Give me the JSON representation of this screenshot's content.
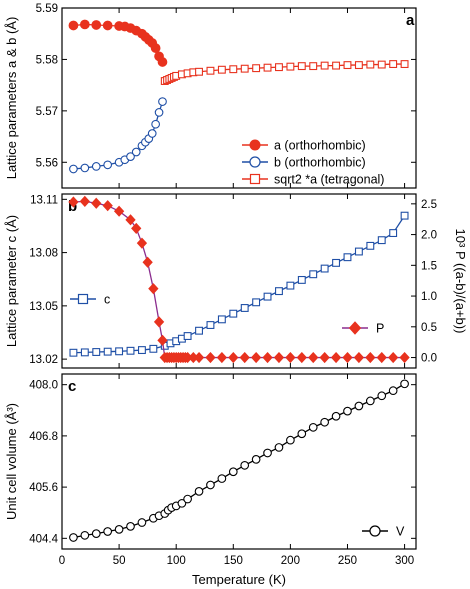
{
  "chart_data": [
    {
      "id": "a",
      "type": "scatter",
      "panel_label": "a",
      "ylabel": "Lattice parameters a & b (Å)",
      "xlim": [
        0,
        310
      ],
      "ylim": [
        5.555,
        5.59
      ],
      "yticks": [
        5.56,
        5.57,
        5.58,
        5.59
      ],
      "yticklabels": [
        "5.56",
        "5.57",
        "5.58",
        "5.59"
      ],
      "legend_position": "bottom-right",
      "series": [
        {
          "name": "a (orthorhombic)",
          "color": "#e8321e",
          "marker": "filled-circle",
          "x": [
            10,
            20,
            30,
            40,
            50,
            55,
            60,
            65,
            70,
            73,
            76,
            79,
            82,
            85,
            88
          ],
          "y": [
            5.5866,
            5.5868,
            5.5867,
            5.5866,
            5.5865,
            5.5864,
            5.5861,
            5.5856,
            5.585,
            5.5844,
            5.5838,
            5.5832,
            5.5822,
            5.5806,
            5.5795
          ]
        },
        {
          "name": "b (orthorhombic)",
          "color": "#1f4fa6",
          "marker": "open-circle",
          "x": [
            10,
            20,
            30,
            40,
            50,
            55,
            60,
            65,
            70,
            73,
            76,
            79,
            82,
            85,
            88
          ],
          "y": [
            5.5587,
            5.5589,
            5.5592,
            5.5595,
            5.56,
            5.5605,
            5.5611,
            5.562,
            5.5632,
            5.5639,
            5.5646,
            5.5656,
            5.5674,
            5.5697,
            5.5718
          ]
        },
        {
          "name": "sqrt2 *a (tetragonal)",
          "color": "#e8321e",
          "marker": "open-square",
          "x": [
            90,
            92,
            94,
            96,
            98,
            100,
            105,
            110,
            115,
            120,
            130,
            140,
            150,
            160,
            170,
            180,
            190,
            200,
            210,
            220,
            230,
            240,
            250,
            260,
            270,
            280,
            290,
            300
          ],
          "y": [
            5.5758,
            5.576,
            5.5762,
            5.5764,
            5.5766,
            5.5768,
            5.5771,
            5.5773,
            5.5775,
            5.5776,
            5.5778,
            5.578,
            5.5781,
            5.5782,
            5.5783,
            5.5784,
            5.5785,
            5.5786,
            5.5787,
            5.5787,
            5.5788,
            5.5788,
            5.5789,
            5.5789,
            5.579,
            5.579,
            5.5791,
            5.5791
          ]
        }
      ]
    },
    {
      "id": "b",
      "type": "scatter",
      "panel_label": "b",
      "ylabel": "Lattice parameter c (Å)",
      "y2label": "10³ P ((a-b)/(a+b))",
      "xlim": [
        0,
        310
      ],
      "ylim": [
        13.015,
        13.113
      ],
      "yticks": [
        13.02,
        13.05,
        13.08,
        13.11
      ],
      "yticklabels": [
        "13.02",
        "13.05",
        "13.08",
        "13.11"
      ],
      "y2lim": [
        -0.17,
        2.66
      ],
      "y2ticks": [
        0.0,
        0.5,
        1.0,
        1.5,
        2.0,
        2.5
      ],
      "y2ticklabels": [
        "0.0",
        "0.5",
        "1.0",
        "1.5",
        "2.0",
        "2.5"
      ],
      "series": [
        {
          "name": "c",
          "axis": "left",
          "color": "#1f4fa6",
          "marker": "open-square",
          "legend_position": "middle-left",
          "x": [
            10,
            20,
            30,
            40,
            50,
            60,
            70,
            80,
            90,
            95,
            100,
            105,
            110,
            120,
            130,
            140,
            150,
            160,
            170,
            180,
            190,
            200,
            210,
            220,
            230,
            240,
            250,
            260,
            270,
            280,
            290,
            300
          ],
          "y": [
            13.0236,
            13.0238,
            13.024,
            13.0242,
            13.0244,
            13.0247,
            13.0251,
            13.0258,
            13.0275,
            13.0289,
            13.0301,
            13.0315,
            13.033,
            13.036,
            13.0392,
            13.0424,
            13.0456,
            13.0488,
            13.052,
            13.0552,
            13.0583,
            13.0614,
            13.0646,
            13.0678,
            13.071,
            13.0742,
            13.0774,
            13.0806,
            13.0838,
            13.087,
            13.091,
            13.1008
          ]
        },
        {
          "name": "P",
          "axis": "right",
          "color": "#e8321e",
          "marker": "filled-diamond",
          "line_color": "#8b2d8e",
          "legend_position": "middle-right",
          "x": [
            10,
            20,
            30,
            40,
            50,
            60,
            65,
            70,
            75,
            80,
            85,
            88,
            90,
            92,
            94,
            96,
            98,
            100,
            102,
            104,
            106,
            108,
            110,
            115,
            120,
            130,
            140,
            150,
            160,
            170,
            180,
            190,
            200,
            210,
            220,
            230,
            240,
            250,
            260,
            270,
            280,
            290,
            300
          ],
          "y": [
            2.53,
            2.54,
            2.51,
            2.47,
            2.38,
            2.24,
            2.1,
            1.86,
            1.55,
            1.12,
            0.58,
            0.28,
            0.0,
            0.0,
            0.0,
            0.0,
            0.0,
            0.0,
            0.0,
            0.0,
            0.0,
            0.0,
            0.0,
            0.0,
            0.0,
            0.0,
            0.0,
            0.0,
            0.0,
            0.0,
            0.0,
            0.0,
            0.0,
            0.0,
            0.0,
            0.0,
            0.0,
            0.0,
            0.0,
            0.0,
            0.0,
            0.0,
            0.0
          ]
        }
      ]
    },
    {
      "id": "c",
      "type": "scatter",
      "panel_label": "c",
      "ylabel": "Unit cell volume (Å³)",
      "xlabel": "Temperature (K)",
      "xlim": [
        0,
        310
      ],
      "xticks": [
        0,
        50,
        100,
        150,
        200,
        250,
        300
      ],
      "xticklabels": [
        "0",
        "50",
        "100",
        "150",
        "200",
        "250",
        "300"
      ],
      "ylim": [
        404.15,
        408.25
      ],
      "yticks": [
        404.4,
        405.6,
        406.8,
        408.0
      ],
      "yticklabels": [
        "404.4",
        "405.6",
        "406.8",
        "408.0"
      ],
      "legend_position": "bottom-right",
      "series": [
        {
          "name": "V",
          "color": "#000000",
          "marker": "open-circle",
          "x": [
            10,
            20,
            30,
            40,
            50,
            60,
            70,
            80,
            85,
            90,
            93,
            96,
            100,
            105,
            110,
            120,
            130,
            140,
            150,
            160,
            170,
            180,
            190,
            200,
            210,
            220,
            230,
            240,
            250,
            260,
            270,
            280,
            290,
            300
          ],
          "y": [
            404.42,
            404.47,
            404.51,
            404.56,
            404.61,
            404.68,
            404.77,
            404.87,
            404.93,
            404.98,
            405.06,
            405.12,
            405.16,
            405.22,
            405.32,
            405.5,
            405.65,
            405.8,
            405.96,
            406.11,
            406.25,
            406.4,
            406.53,
            406.7,
            406.85,
            407.0,
            407.12,
            407.26,
            407.38,
            407.5,
            407.62,
            407.74,
            407.86,
            408.02
          ]
        }
      ]
    }
  ]
}
